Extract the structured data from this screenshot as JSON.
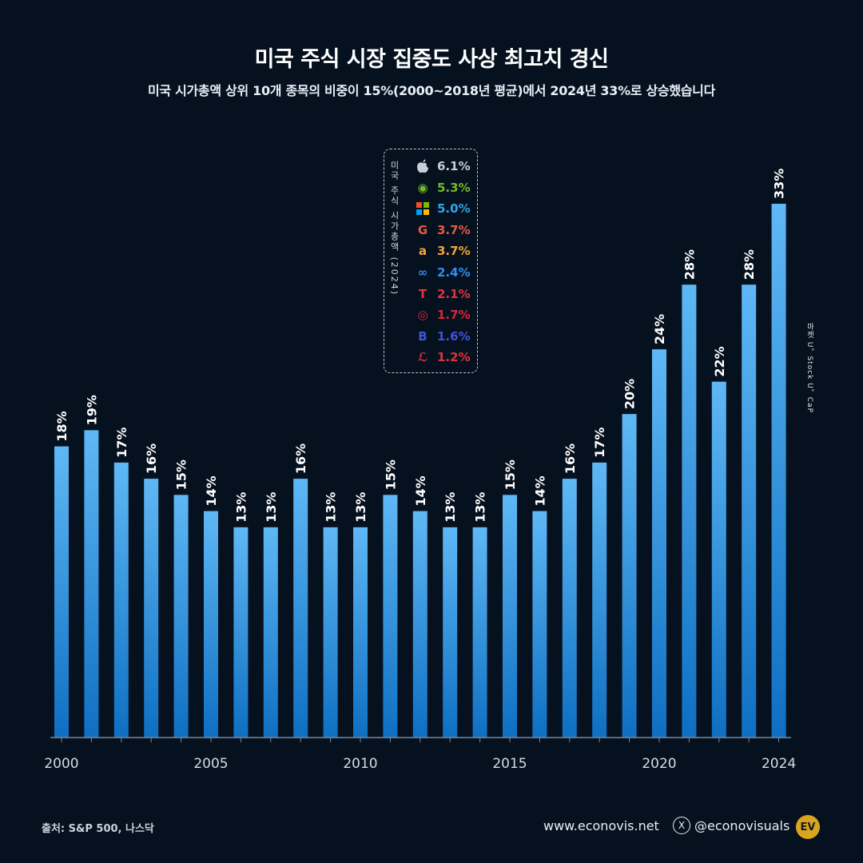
{
  "title": "미국 주식 시장 집중도 사상 최고치 경신",
  "subtitle": "미국 시가총액 상위 10개 종목의 비중이 15%(2000~2018년 평균)에서 2024년 33%로 상승했습니다",
  "legend": {
    "vertical_label": "미국 주식 시가총액 (2024)",
    "items": [
      {
        "icon": "apple-icon",
        "glyph": "",
        "value": "6.1%",
        "color": "#c9ced6"
      },
      {
        "icon": "nvidia-icon",
        "glyph": "◉",
        "value": "5.3%",
        "color": "#76b82a"
      },
      {
        "icon": "microsoft-icon",
        "glyph": "",
        "value": "5.0%",
        "color": "#2fa4e7"
      },
      {
        "icon": "google-icon",
        "glyph": "G",
        "value": "3.7%",
        "color": "#e25a46"
      },
      {
        "icon": "amazon-icon",
        "glyph": "a",
        "value": "3.7%",
        "color": "#f0a536"
      },
      {
        "icon": "meta-icon",
        "glyph": "∞",
        "value": "2.4%",
        "color": "#2d8ff0"
      },
      {
        "icon": "tesla-icon",
        "glyph": "T",
        "value": "2.1%",
        "color": "#e0343c"
      },
      {
        "icon": "broadcom-icon",
        "glyph": "◎",
        "value": "1.7%",
        "color": "#d8263a"
      },
      {
        "icon": "berkshire-icon",
        "glyph": "B",
        "value": "1.6%",
        "color": "#3d55d8"
      },
      {
        "icon": "eli-lilly-icon",
        "glyph": "ℒ",
        "value": "1.2%",
        "color": "#e0343c"
      }
    ]
  },
  "side_label": "마켓 U。Stock U。CaP",
  "footer": {
    "source": "출처: S&P 500, 나스닥",
    "site": "www.econovis.net",
    "x_glyph": "X",
    "handle": "@econovisuals",
    "logo": "EV"
  },
  "colors": {
    "background": "#06111f",
    "bar_top": "#5fb8f5",
    "bar_bottom": "#0e6fc2",
    "axis": "#7d8896"
  },
  "chart_data": {
    "type": "bar",
    "title": "미국 주식 시장 집중도 사상 최고치 경신",
    "x": [
      2000,
      2001,
      2002,
      2003,
      2004,
      2005,
      2006,
      2007,
      2008,
      2009,
      2010,
      2011,
      2012,
      2013,
      2014,
      2015,
      2016,
      2017,
      2018,
      2019,
      2020,
      2021,
      2022,
      2023,
      2024
    ],
    "values": [
      18,
      19,
      17,
      16,
      15,
      14,
      13,
      13,
      16,
      13,
      13,
      15,
      14,
      13,
      13,
      15,
      14,
      16,
      17,
      20,
      24,
      28,
      22,
      28,
      33
    ],
    "data_labels": [
      "18%",
      "19%",
      "17%",
      "16%",
      "15%",
      "14%",
      "13%",
      "13%",
      "16%",
      "13%",
      "13%",
      "15%",
      "14%",
      "13%",
      "13%",
      "15%",
      "14%",
      "16%",
      "17%",
      "20%",
      "24%",
      "28%",
      "22%",
      "28%",
      "33%"
    ],
    "x_tick_labels": [
      "2000",
      "2005",
      "2010",
      "2015",
      "2020",
      "2024"
    ],
    "x_tick_years": [
      2000,
      2005,
      2010,
      2015,
      2020,
      2024
    ],
    "ylim": [
      0,
      33
    ],
    "grid": false,
    "legend": "none"
  }
}
